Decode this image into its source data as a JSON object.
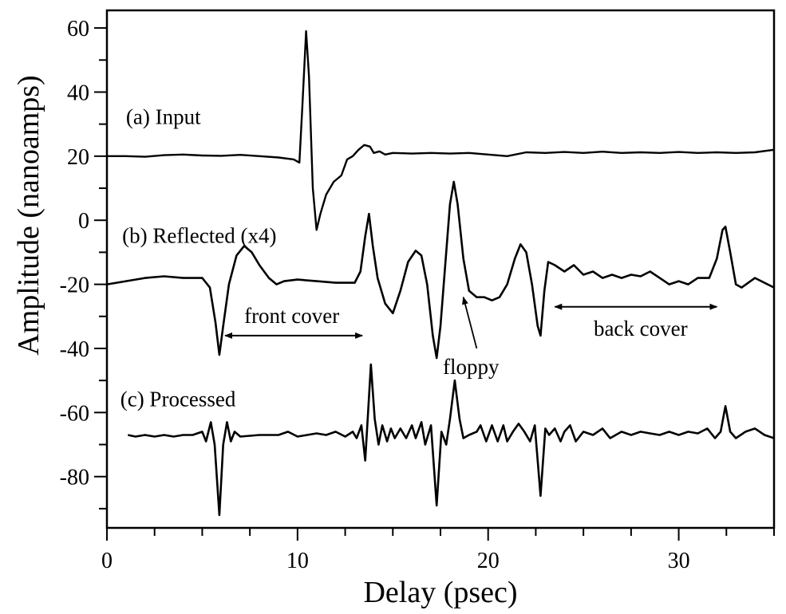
{
  "chart_data": {
    "type": "line",
    "title": "",
    "xlabel": "Delay (psec)",
    "ylabel": "Amplitude (nanoamps)",
    "xlim": [
      0,
      35
    ],
    "ylim": [
      -96,
      65.5
    ],
    "xticks": [
      0,
      10,
      20,
      30
    ],
    "yticks": [
      60,
      40,
      20,
      0,
      -20,
      -40,
      -60,
      -80
    ],
    "xtick_labels": [
      "0",
      "10",
      "20",
      "30"
    ],
    "ytick_labels": [
      "60",
      "40",
      "20",
      "0",
      "-20",
      "-40",
      "-60",
      "-80"
    ],
    "grid": false,
    "series": [
      {
        "name": "(a) Input",
        "points": [
          [
            0,
            20
          ],
          [
            1,
            20
          ],
          [
            2,
            19.8
          ],
          [
            3,
            20.3
          ],
          [
            4,
            20.5
          ],
          [
            5,
            20.2
          ],
          [
            6,
            20.1
          ],
          [
            7,
            20.4
          ],
          [
            8,
            20
          ],
          [
            9,
            19.6
          ],
          [
            9.8,
            19
          ],
          [
            10.1,
            18
          ],
          [
            10.25,
            35
          ],
          [
            10.45,
            59
          ],
          [
            10.6,
            45
          ],
          [
            10.8,
            10
          ],
          [
            11.0,
            -3
          ],
          [
            11.2,
            2
          ],
          [
            11.5,
            8
          ],
          [
            11.9,
            12
          ],
          [
            12.3,
            14
          ],
          [
            12.6,
            19
          ],
          [
            12.9,
            20
          ],
          [
            13.2,
            22
          ],
          [
            13.5,
            23.5
          ],
          [
            13.8,
            23
          ],
          [
            14.0,
            21
          ],
          [
            14.3,
            21.5
          ],
          [
            14.6,
            20.5
          ],
          [
            15,
            21
          ],
          [
            16,
            20.8
          ],
          [
            17,
            21
          ],
          [
            18,
            20.8
          ],
          [
            19,
            21
          ],
          [
            20,
            20.5
          ],
          [
            21,
            20
          ],
          [
            22,
            21.2
          ],
          [
            23,
            21
          ],
          [
            24,
            21.3
          ],
          [
            25,
            21
          ],
          [
            26,
            21.4
          ],
          [
            27,
            21
          ],
          [
            28,
            21.2
          ],
          [
            29,
            21
          ],
          [
            30,
            21.3
          ],
          [
            31,
            21
          ],
          [
            32,
            21.2
          ],
          [
            33,
            21
          ],
          [
            34,
            21.2
          ],
          [
            35,
            22
          ]
        ]
      },
      {
        "name": "(b) Reflected (x4)",
        "points": [
          [
            0,
            -20
          ],
          [
            1,
            -19
          ],
          [
            2,
            -18
          ],
          [
            3,
            -17.5
          ],
          [
            4,
            -18
          ],
          [
            5,
            -18
          ],
          [
            5.4,
            -21
          ],
          [
            5.7,
            -32
          ],
          [
            5.9,
            -42
          ],
          [
            6.1,
            -33
          ],
          [
            6.4,
            -20
          ],
          [
            6.8,
            -11
          ],
          [
            7.2,
            -8
          ],
          [
            7.6,
            -10
          ],
          [
            8.0,
            -14
          ],
          [
            8.5,
            -18
          ],
          [
            8.9,
            -20
          ],
          [
            9.3,
            -19
          ],
          [
            10,
            -18.5
          ],
          [
            11,
            -19
          ],
          [
            12,
            -19.5
          ],
          [
            13,
            -19.5
          ],
          [
            13.3,
            -16
          ],
          [
            13.55,
            -5
          ],
          [
            13.75,
            2
          ],
          [
            13.95,
            -8
          ],
          [
            14.2,
            -18
          ],
          [
            14.6,
            -26
          ],
          [
            15.0,
            -29
          ],
          [
            15.4,
            -22
          ],
          [
            15.8,
            -13
          ],
          [
            16.2,
            -9.5
          ],
          [
            16.5,
            -11
          ],
          [
            16.8,
            -20
          ],
          [
            17.1,
            -36
          ],
          [
            17.3,
            -43
          ],
          [
            17.5,
            -33
          ],
          [
            17.8,
            -10
          ],
          [
            18.0,
            5
          ],
          [
            18.2,
            12
          ],
          [
            18.4,
            5
          ],
          [
            18.7,
            -12
          ],
          [
            19.0,
            -22
          ],
          [
            19.4,
            -24
          ],
          [
            19.8,
            -24
          ],
          [
            20.2,
            -25
          ],
          [
            20.6,
            -24
          ],
          [
            21.0,
            -20
          ],
          [
            21.4,
            -12
          ],
          [
            21.7,
            -7.5
          ],
          [
            22.0,
            -10
          ],
          [
            22.3,
            -20
          ],
          [
            22.6,
            -33
          ],
          [
            22.75,
            -36
          ],
          [
            22.95,
            -22
          ],
          [
            23.15,
            -13
          ],
          [
            23.5,
            -14
          ],
          [
            24,
            -16
          ],
          [
            24.5,
            -14
          ],
          [
            25,
            -17
          ],
          [
            25.5,
            -16
          ],
          [
            26,
            -18
          ],
          [
            26.5,
            -17
          ],
          [
            27,
            -18
          ],
          [
            27.5,
            -17
          ],
          [
            28,
            -17.5
          ],
          [
            28.5,
            -16
          ],
          [
            29,
            -18
          ],
          [
            29.5,
            -20
          ],
          [
            30,
            -19
          ],
          [
            30.5,
            -20
          ],
          [
            31,
            -18
          ],
          [
            31.6,
            -18
          ],
          [
            32.0,
            -12
          ],
          [
            32.3,
            -3
          ],
          [
            32.45,
            -2
          ],
          [
            32.7,
            -10
          ],
          [
            33.0,
            -20
          ],
          [
            33.3,
            -21
          ],
          [
            34,
            -18
          ],
          [
            35,
            -21
          ]
        ]
      },
      {
        "name": "(c) Processed",
        "points": [
          [
            1.1,
            -67
          ],
          [
            1.5,
            -67.5
          ],
          [
            2,
            -67
          ],
          [
            2.5,
            -67.5
          ],
          [
            3,
            -67
          ],
          [
            3.5,
            -67.5
          ],
          [
            4,
            -67
          ],
          [
            4.5,
            -67
          ],
          [
            5.0,
            -66
          ],
          [
            5.2,
            -69
          ],
          [
            5.45,
            -63
          ],
          [
            5.65,
            -70
          ],
          [
            5.9,
            -92
          ],
          [
            6.1,
            -70
          ],
          [
            6.3,
            -63
          ],
          [
            6.5,
            -69
          ],
          [
            6.7,
            -66
          ],
          [
            7,
            -67.5
          ],
          [
            8,
            -67
          ],
          [
            9,
            -67
          ],
          [
            9.5,
            -66
          ],
          [
            10,
            -67.5
          ],
          [
            10.5,
            -67
          ],
          [
            11,
            -66.5
          ],
          [
            11.5,
            -67
          ],
          [
            12,
            -66
          ],
          [
            12.5,
            -67.5
          ],
          [
            12.9,
            -66
          ],
          [
            13.1,
            -68
          ],
          [
            13.35,
            -64
          ],
          [
            13.55,
            -75
          ],
          [
            13.85,
            -45
          ],
          [
            14.05,
            -62
          ],
          [
            14.25,
            -70
          ],
          [
            14.45,
            -64
          ],
          [
            14.7,
            -69
          ],
          [
            14.9,
            -65
          ],
          [
            15.1,
            -68
          ],
          [
            15.4,
            -65
          ],
          [
            15.7,
            -68
          ],
          [
            16.0,
            -64
          ],
          [
            16.2,
            -68
          ],
          [
            16.5,
            -63
          ],
          [
            16.7,
            -70
          ],
          [
            17.0,
            -64
          ],
          [
            17.3,
            -89
          ],
          [
            17.55,
            -66
          ],
          [
            17.8,
            -70
          ],
          [
            18.0,
            -62
          ],
          [
            18.25,
            -50
          ],
          [
            18.5,
            -62
          ],
          [
            18.7,
            -68
          ],
          [
            19,
            -67
          ],
          [
            19.4,
            -66
          ],
          [
            19.6,
            -64
          ],
          [
            19.9,
            -69
          ],
          [
            20.2,
            -64
          ],
          [
            20.5,
            -69
          ],
          [
            20.8,
            -64
          ],
          [
            21.0,
            -69
          ],
          [
            21.3,
            -66
          ],
          [
            21.6,
            -63.5
          ],
          [
            21.9,
            -66
          ],
          [
            22.2,
            -69
          ],
          [
            22.45,
            -64
          ],
          [
            22.75,
            -86
          ],
          [
            23.0,
            -65
          ],
          [
            23.2,
            -67
          ],
          [
            23.5,
            -65
          ],
          [
            23.8,
            -69
          ],
          [
            24.0,
            -66
          ],
          [
            24.3,
            -64
          ],
          [
            24.6,
            -69
          ],
          [
            25,
            -66
          ],
          [
            25.5,
            -67
          ],
          [
            26,
            -65
          ],
          [
            26.4,
            -68
          ],
          [
            27,
            -66
          ],
          [
            27.5,
            -67
          ],
          [
            28,
            -66
          ],
          [
            28.5,
            -66.5
          ],
          [
            29,
            -67
          ],
          [
            29.5,
            -66
          ],
          [
            30,
            -67
          ],
          [
            30.5,
            -66
          ],
          [
            31,
            -66.5
          ],
          [
            31.5,
            -65
          ],
          [
            31.9,
            -68
          ],
          [
            32.2,
            -66
          ],
          [
            32.45,
            -58
          ],
          [
            32.7,
            -66
          ],
          [
            33.0,
            -68
          ],
          [
            33.5,
            -66
          ],
          [
            34,
            -65
          ],
          [
            34.5,
            -67
          ],
          [
            35,
            -68
          ]
        ]
      }
    ],
    "annotations": [
      {
        "text": "(a) Input",
        "x": 1.0,
        "y": 30
      },
      {
        "text": "(b) Reflected (x4)",
        "x": 0.8,
        "y": -7
      },
      {
        "text": "front cover",
        "x": 9.7,
        "y": -32,
        "arrow_from": 6.2,
        "arrow_to": 13.4,
        "arrow_y": -36
      },
      {
        "text": "floppy",
        "x": 19.1,
        "y": -48,
        "pointer_from": [
          19.4,
          -40
        ],
        "pointer_to": [
          18.7,
          -24
        ]
      },
      {
        "text": "back cover",
        "x": 28.0,
        "y": -36,
        "arrow_from": 23.5,
        "arrow_to": 32.0,
        "arrow_y": -27
      },
      {
        "text": "(c) Processed",
        "x": 0.7,
        "y": -58
      }
    ]
  }
}
